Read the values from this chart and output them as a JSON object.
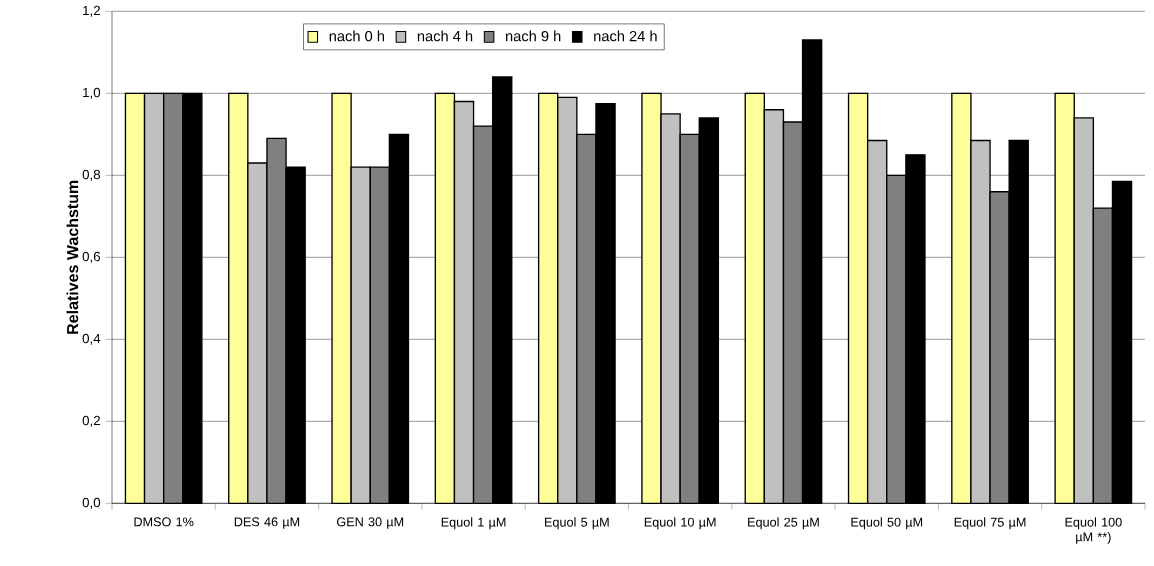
{
  "chart_data": {
    "type": "bar",
    "ylabel": "Relatives Wachstum",
    "categories": [
      "DMSO 1%",
      "DES 46 µM",
      "GEN 30 µM",
      "Equol 1 µM",
      "Equol 5 µM",
      "Equol 10 µM",
      "Equol 25 µM",
      "Equol 50 µM",
      "Equol 75 µM",
      "Equol 100 µM **)"
    ],
    "series": [
      {
        "name": "nach 0 h",
        "color": "#ffff99",
        "values": [
          1,
          1,
          1,
          1,
          1,
          1,
          1,
          1,
          1,
          1
        ]
      },
      {
        "name": "nach 4 h",
        "color": "#c0c0c0",
        "values": [
          1,
          0.83,
          0.82,
          0.98,
          0.99,
          0.95,
          0.96,
          0.885,
          0.885,
          0.94
        ]
      },
      {
        "name": "nach 9 h",
        "color": "#808080",
        "values": [
          1,
          0.89,
          0.82,
          0.92,
          0.9,
          0.9,
          0.93,
          0.8,
          0.76,
          0.72
        ]
      },
      {
        "name": "nach 24 h",
        "color": "#000000",
        "values": [
          1,
          0.82,
          0.9,
          1.04,
          0.975,
          0.94,
          1.13,
          0.85,
          0.885,
          0.785
        ]
      }
    ],
    "ylim": [
      0,
      1.2
    ],
    "yticks": [
      {
        "value": 0,
        "label": "0,0"
      },
      {
        "value": 0.2,
        "label": "0,2"
      },
      {
        "value": 0.4,
        "label": "0,4"
      },
      {
        "value": 0.6,
        "label": "0,6"
      },
      {
        "value": 0.8,
        "label": "0,8"
      },
      {
        "value": 1.0,
        "label": "1,0"
      },
      {
        "value": 1.2,
        "label": "1,2"
      }
    ],
    "grid": "y",
    "legend": "top"
  }
}
